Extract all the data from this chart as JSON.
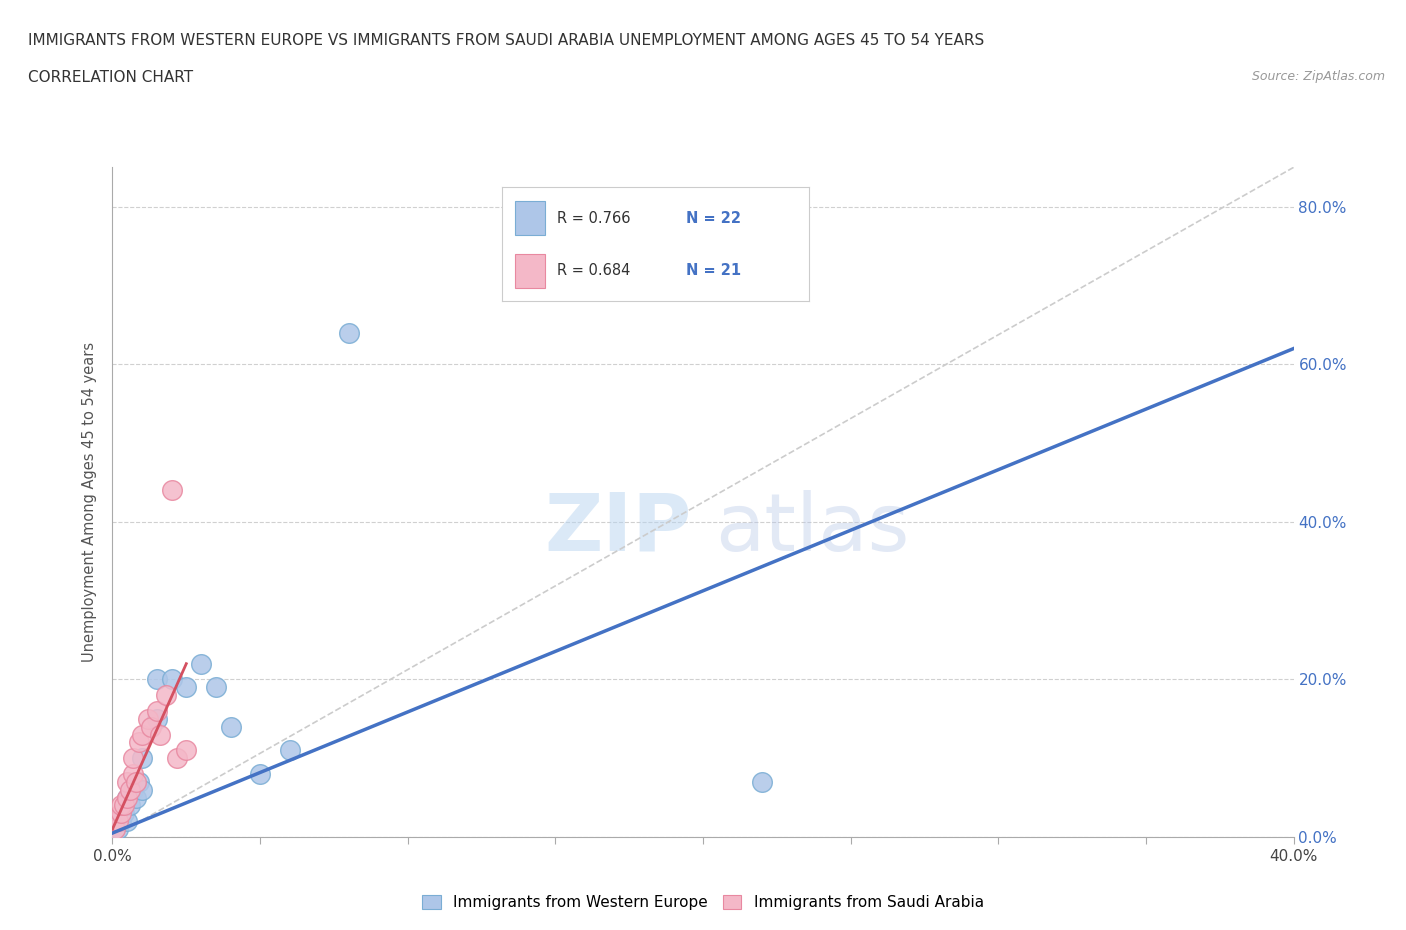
{
  "title_line1": "IMMIGRANTS FROM WESTERN EUROPE VS IMMIGRANTS FROM SAUDI ARABIA UNEMPLOYMENT AMONG AGES 45 TO 54 YEARS",
  "title_line2": "CORRELATION CHART",
  "source_text": "Source: ZipAtlas.com",
  "ylabel": "Unemployment Among Ages 45 to 54 years",
  "watermark_zip": "ZIP",
  "watermark_atlas": "atlas",
  "legend_label_blue": "Immigrants from Western Europe",
  "legend_label_pink": "Immigrants from Saudi Arabia",
  "xlim": [
    0,
    0.4
  ],
  "ylim": [
    0,
    0.85
  ],
  "xticks": [
    0.0,
    0.05,
    0.1,
    0.15,
    0.2,
    0.25,
    0.3,
    0.35,
    0.4
  ],
  "xtick_labels_show": [
    true,
    false,
    false,
    false,
    false,
    false,
    false,
    false,
    true
  ],
  "yticks": [
    0.0,
    0.2,
    0.4,
    0.6,
    0.8
  ],
  "blue_scatter_x": [
    0.002,
    0.003,
    0.004,
    0.005,
    0.005,
    0.006,
    0.007,
    0.008,
    0.009,
    0.01,
    0.01,
    0.015,
    0.015,
    0.02,
    0.025,
    0.03,
    0.035,
    0.04,
    0.05,
    0.06,
    0.08,
    0.22
  ],
  "blue_scatter_y": [
    0.01,
    0.02,
    0.03,
    0.02,
    0.05,
    0.04,
    0.06,
    0.05,
    0.07,
    0.06,
    0.1,
    0.15,
    0.2,
    0.2,
    0.19,
    0.22,
    0.19,
    0.14,
    0.08,
    0.11,
    0.64,
    0.07
  ],
  "pink_scatter_x": [
    0.001,
    0.002,
    0.003,
    0.003,
    0.004,
    0.005,
    0.005,
    0.006,
    0.007,
    0.007,
    0.008,
    0.009,
    0.01,
    0.012,
    0.013,
    0.015,
    0.016,
    0.018,
    0.02,
    0.022,
    0.025
  ],
  "pink_scatter_y": [
    0.01,
    0.02,
    0.03,
    0.04,
    0.04,
    0.05,
    0.07,
    0.06,
    0.08,
    0.1,
    0.07,
    0.12,
    0.13,
    0.15,
    0.14,
    0.16,
    0.13,
    0.18,
    0.44,
    0.1,
    0.11
  ],
  "blue_line_x": [
    0.0,
    0.4
  ],
  "blue_line_y": [
    0.005,
    0.62
  ],
  "pink_line_x": [
    0.0,
    0.025
  ],
  "pink_line_y": [
    0.01,
    0.22
  ],
  "blue_color": "#aec6e8",
  "blue_edge": "#7aadd4",
  "pink_color": "#f4b8c8",
  "pink_edge": "#e888a0",
  "blue_line_color": "#4472c4",
  "pink_line_color": "#d45060",
  "grid_color": "#d0d0d0",
  "diag_color": "#cccccc",
  "background_color": "#ffffff",
  "title_color": "#333333",
  "right_tick_color": "#4472c4",
  "legend_border_color": "#cccccc",
  "source_color": "#999999"
}
